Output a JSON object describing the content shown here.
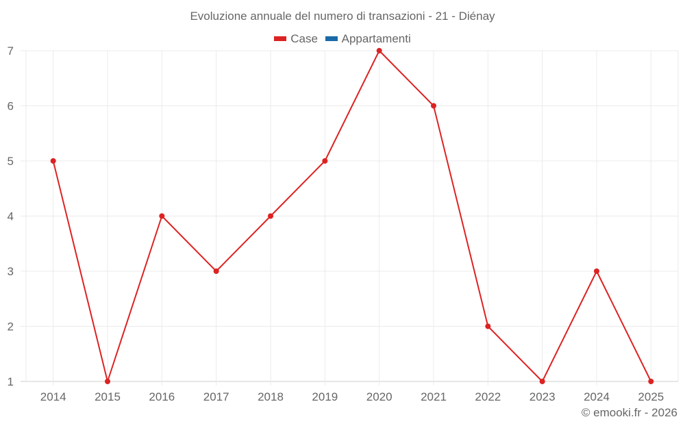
{
  "title": "Evoluzione annuale del numero di transazioni - 21 - Diénay",
  "legend": [
    {
      "label": "Case",
      "color": "#dd2222"
    },
    {
      "label": "Appartamenti",
      "color": "#1a6aa8"
    }
  ],
  "credit": "© emooki.fr - 2026",
  "colors": {
    "grid": "#ebebeb",
    "axis": "#cccccc",
    "text": "#666666"
  },
  "chart_data": {
    "type": "line",
    "title": "Evoluzione annuale del numero di transazioni - 21 - Diénay",
    "xlabel": "",
    "ylabel": "",
    "categories": [
      "2014",
      "2015",
      "2016",
      "2017",
      "2018",
      "2019",
      "2020",
      "2021",
      "2022",
      "2023",
      "2024",
      "2025"
    ],
    "series": [
      {
        "name": "Case",
        "color": "#dd2222",
        "values": [
          5,
          1,
          4,
          3,
          4,
          5,
          7,
          6,
          2,
          1,
          3,
          1
        ]
      },
      {
        "name": "Appartamenti",
        "color": "#1a6aa8",
        "values": []
      }
    ],
    "yticks": [
      1,
      2,
      3,
      4,
      5,
      6,
      7
    ],
    "ylim": [
      1,
      7
    ],
    "grid": true,
    "legend_position": "top"
  }
}
